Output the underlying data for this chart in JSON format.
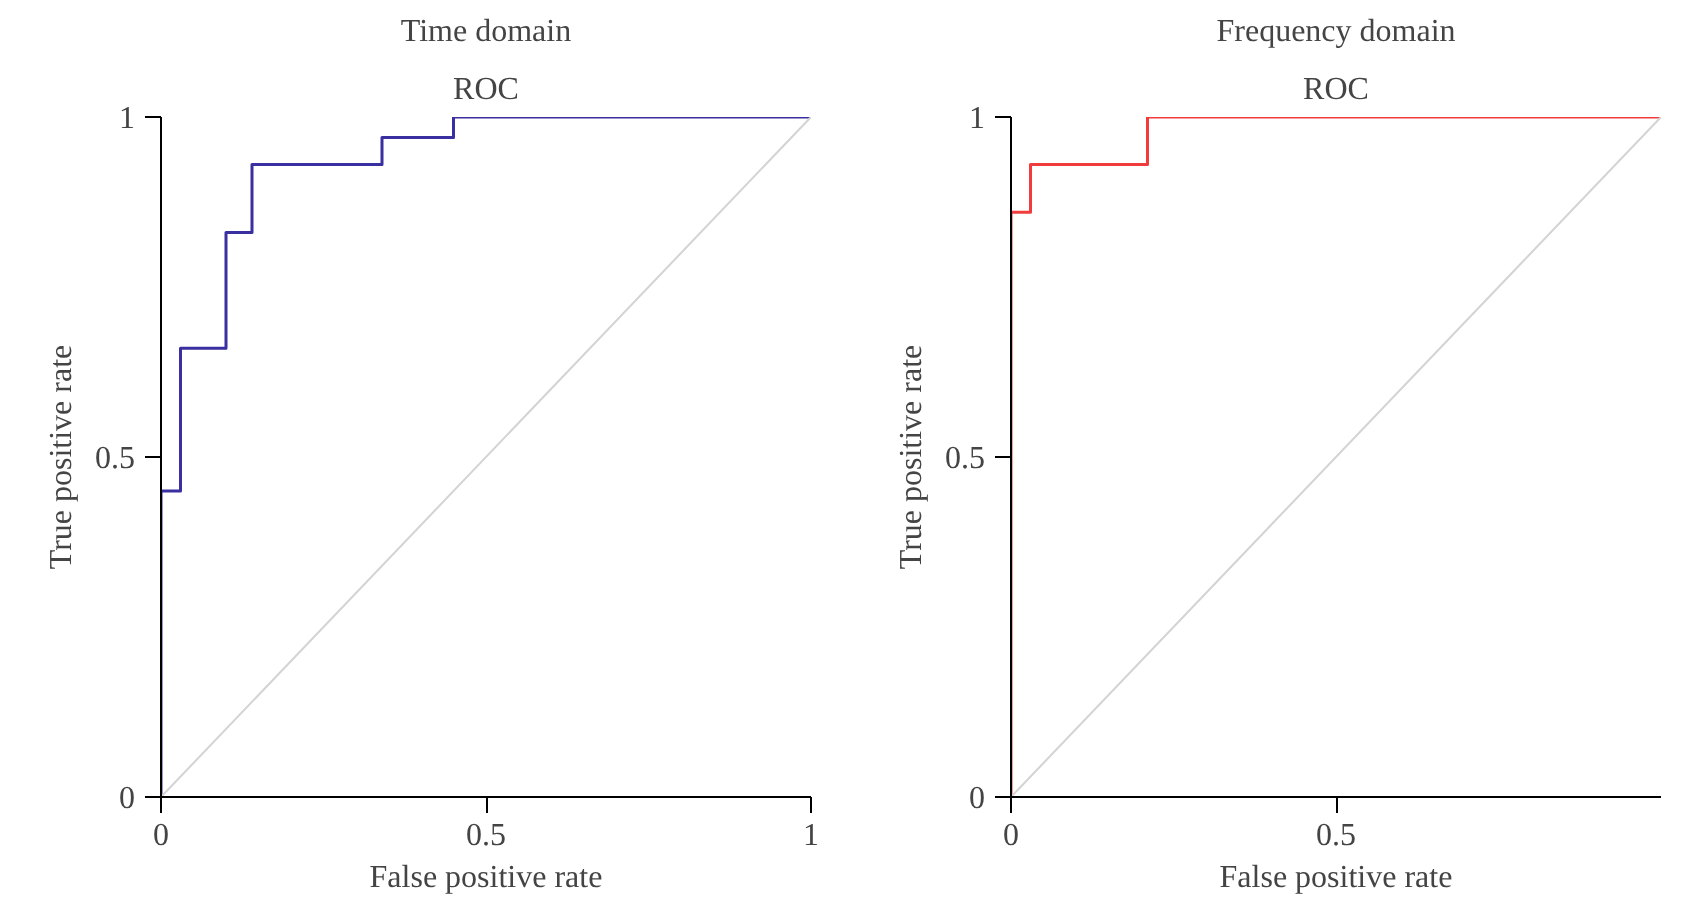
{
  "chart_data": [
    {
      "type": "step",
      "title": "Time domain",
      "subtitle": "ROC",
      "xlabel": "False positive rate",
      "ylabel": "True positive rate",
      "xlim": [
        0,
        1
      ],
      "ylim": [
        0,
        1
      ],
      "xticks": [
        0,
        0.5,
        1
      ],
      "yticks": [
        0,
        0.5,
        1
      ],
      "grid": false,
      "series": [
        {
          "color": "#3a2fa0",
          "x": [
            0,
            0,
            0.03,
            0.1,
            0.14,
            0.34,
            0.45,
            1
          ],
          "values": [
            0,
            0.45,
            0.66,
            0.83,
            0.93,
            0.97,
            1,
            1
          ]
        },
        {
          "type": "line",
          "color": "#d3d3d3",
          "x": [
            0,
            1
          ],
          "values": [
            0,
            1
          ]
        }
      ]
    },
    {
      "type": "step",
      "title": "Frequency domain",
      "subtitle": "ROC",
      "xlabel": "False positive rate",
      "ylabel": "True positive rate",
      "xlim": [
        0,
        1
      ],
      "ylim": [
        0,
        1
      ],
      "xticks": [
        0,
        0.5
      ],
      "yticks": [
        0,
        0.5,
        1
      ],
      "grid": false,
      "series": [
        {
          "color": "#f03c3c",
          "x": [
            0,
            0,
            0.03,
            0.21,
            1
          ],
          "values": [
            0,
            0.86,
            0.93,
            1,
            1
          ]
        },
        {
          "type": "line",
          "color": "#d3d3d3",
          "x": [
            0,
            1
          ],
          "values": [
            0,
            1
          ]
        }
      ]
    }
  ]
}
